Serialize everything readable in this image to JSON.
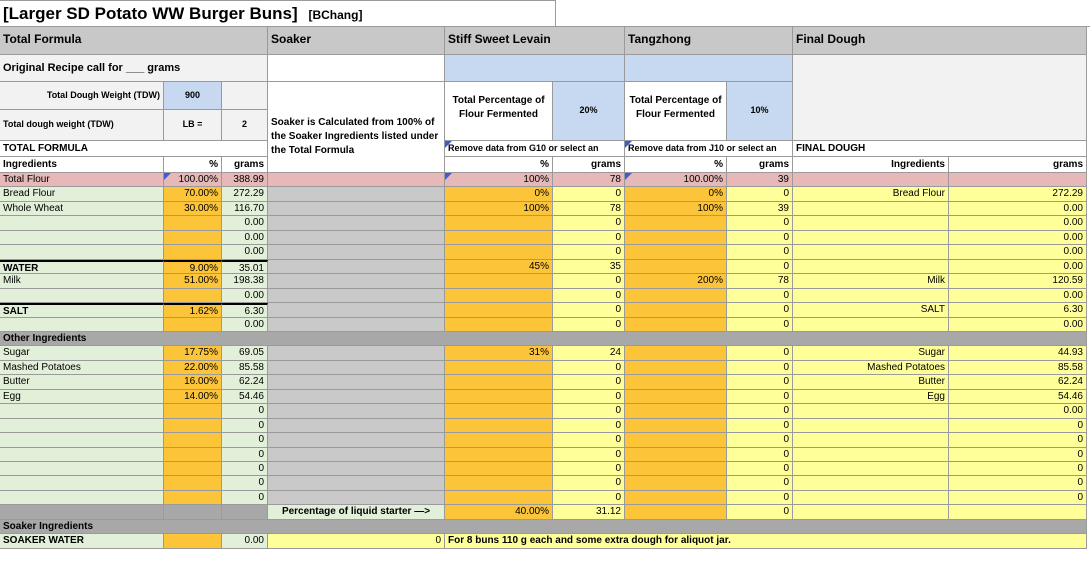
{
  "title": "[Larger SD Potato WW Burger Buns]",
  "author": "[BChang]",
  "sections": {
    "total": "Total Formula",
    "soaker": "Soaker",
    "levain": "Stiff Sweet Levain",
    "tangzhong": "Tangzhong",
    "final": "Final Dough"
  },
  "orig_recipe": "Original Recipe call for ___ grams",
  "tdw_label": "Total Dough Weight (TDW)",
  "tdw_value": "900",
  "tdw2_label": "Total dough weight (TDW)",
  "lb_label": "LB =",
  "lb_value": "2",
  "soaker_note": "Soaker is Calculated from 100% of the Soaker Ingredients listed under the Total Formula",
  "levain_pct_label": "Total Percentage of Flour Fermented",
  "levain_pct": "20%",
  "tz_pct_label": "Total Percentage of Flour Fermented",
  "tz_pct": "10%",
  "total_formula_caps": "TOTAL FORMULA",
  "remove_g10": "Remove data from G10 or select an",
  "remove_j10": "Remove data from J10 or select an",
  "final_dough_caps": "FINAL DOUGH",
  "h_ingredients": "Ingredients",
  "h_pct": "%",
  "h_grams": "grams",
  "rows": [
    {
      "k": "flour",
      "c": [
        "Total Flour",
        "100.00%",
        "388.99",
        "",
        "100%",
        "78",
        "100.00%",
        "39",
        "",
        ""
      ]
    },
    {
      "k": "d",
      "c": [
        "Bread Flour",
        "70.00%",
        "272.29",
        "",
        "0%",
        "0",
        "0%",
        "0",
        "Bread Flour",
        "272.29"
      ]
    },
    {
      "k": "d",
      "c": [
        "Whole Wheat",
        "30.00%",
        "116.70",
        "",
        "100%",
        "78",
        "100%",
        "39",
        "",
        "0.00"
      ]
    },
    {
      "k": "d",
      "c": [
        "",
        "",
        "0.00",
        "",
        "",
        "0",
        "",
        "0",
        "",
        "0.00"
      ]
    },
    {
      "k": "d",
      "c": [
        "",
        "",
        "0.00",
        "",
        "",
        "0",
        "",
        "0",
        "",
        "0.00"
      ]
    },
    {
      "k": "d",
      "c": [
        "",
        "",
        "0.00",
        "",
        "",
        "0",
        "",
        "0",
        "",
        "0.00"
      ]
    },
    {
      "k": "t",
      "c": [
        "WATER",
        "9.00%",
        "35.01",
        "",
        "45%",
        "35",
        "",
        "0",
        "",
        "0.00"
      ]
    },
    {
      "k": "d",
      "c": [
        "Milk",
        "51.00%",
        "198.38",
        "",
        "",
        "0",
        "200%",
        "78",
        "Milk",
        "120.59"
      ]
    },
    {
      "k": "d",
      "c": [
        "",
        "",
        "0.00",
        "",
        "",
        "0",
        "",
        "0",
        "",
        "0.00"
      ]
    },
    {
      "k": "t",
      "c": [
        "SALT",
        "1.62%",
        "6.30",
        "",
        "",
        "0",
        "",
        "0",
        "SALT",
        "6.30"
      ]
    },
    {
      "k": "d",
      "c": [
        "",
        "",
        "0.00",
        "",
        "",
        "0",
        "",
        "0",
        "",
        "0.00"
      ]
    },
    {
      "k": "other",
      "c": [
        "Other Ingredients"
      ]
    },
    {
      "k": "d",
      "c": [
        "Sugar",
        "17.75%",
        "69.05",
        "",
        "31%",
        "24",
        "",
        "0",
        "Sugar",
        "44.93"
      ]
    },
    {
      "k": "d",
      "c": [
        "Mashed Potatoes",
        "22.00%",
        "85.58",
        "",
        "",
        "0",
        "",
        "0",
        "Mashed Potatoes",
        "85.58"
      ]
    },
    {
      "k": "d",
      "c": [
        "Butter",
        "16.00%",
        "62.24",
        "",
        "",
        "0",
        "",
        "0",
        "Butter",
        "62.24"
      ]
    },
    {
      "k": "d",
      "c": [
        "Egg",
        "14.00%",
        "54.46",
        "",
        "",
        "0",
        "",
        "0",
        "Egg",
        "54.46"
      ]
    },
    {
      "k": "d",
      "c": [
        "",
        "",
        "0",
        "",
        "",
        "0",
        "",
        "0",
        "",
        "0.00"
      ]
    },
    {
      "k": "d",
      "c": [
        "",
        "",
        "0",
        "",
        "",
        "0",
        "",
        "0",
        "",
        "0"
      ]
    },
    {
      "k": "d",
      "c": [
        "",
        "",
        "0",
        "",
        "",
        "0",
        "",
        "0",
        "",
        "0"
      ]
    },
    {
      "k": "d",
      "c": [
        "",
        "",
        "0",
        "",
        "",
        "0",
        "",
        "0",
        "",
        "0"
      ]
    },
    {
      "k": "d",
      "c": [
        "",
        "",
        "0",
        "",
        "",
        "0",
        "",
        "0",
        "",
        "0"
      ]
    },
    {
      "k": "d",
      "c": [
        "",
        "",
        "0",
        "",
        "",
        "0",
        "",
        "0",
        "",
        "0"
      ]
    },
    {
      "k": "d",
      "c": [
        "",
        "",
        "0",
        "",
        "",
        "0",
        "",
        "0",
        "",
        "0"
      ]
    },
    {
      "k": "liq",
      "c": [
        "",
        "",
        "",
        "Percentage of liquid starter —>",
        "40.00%",
        "31.12",
        "",
        "0",
        "",
        ""
      ]
    },
    {
      "k": "soakhdr",
      "c": [
        "Soaker Ingredients"
      ]
    },
    {
      "k": "soak",
      "c": [
        "SOAKER WATER",
        "",
        "0.00",
        "0",
        "For 8 buns 110 g each  and some extra dough for aliquot jar."
      ]
    }
  ]
}
